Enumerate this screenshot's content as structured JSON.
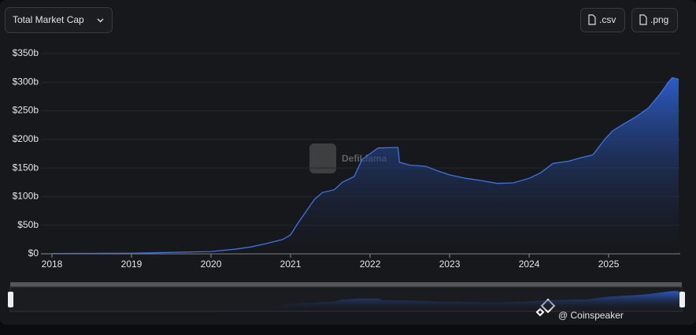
{
  "ui": {
    "dropdown": "Total Market Cap",
    "buttons": [
      ".csv",
      ".png"
    ],
    "watermark": "DefiLlama",
    "credit": "@ Coinspeaker"
  },
  "chart_data": {
    "type": "area",
    "color": "#3f73e0",
    "grid": true,
    "x": [
      2018.0,
      2019.0,
      2020.0,
      2020.3,
      2020.5,
      2020.7,
      2020.9,
      2021.0,
      2021.1,
      2021.2,
      2021.3,
      2021.4,
      2021.55,
      2021.65,
      2021.8,
      2021.9,
      2022.0,
      2022.1,
      2022.35,
      2022.37,
      2022.5,
      2022.7,
      2022.85,
      2023.0,
      2023.2,
      2023.4,
      2023.6,
      2023.8,
      2024.0,
      2024.15,
      2024.3,
      2024.5,
      2024.65,
      2024.8,
      2024.95,
      2025.05,
      2025.2,
      2025.35,
      2025.5,
      2025.65,
      2025.75,
      2025.8,
      2025.88
    ],
    "values": [
      0.5,
      1,
      4,
      8,
      12,
      18,
      25,
      33,
      55,
      75,
      95,
      107,
      112,
      125,
      135,
      165,
      175,
      185,
      186,
      160,
      155,
      153,
      145,
      138,
      132,
      128,
      123,
      124,
      132,
      142,
      158,
      162,
      168,
      173,
      200,
      215,
      228,
      240,
      255,
      280,
      300,
      308,
      305
    ],
    "xlim": [
      2018,
      2025.9
    ],
    "xticks": [
      2018,
      2019,
      2020,
      2021,
      2022,
      2023,
      2024,
      2025
    ],
    "ylim": [
      0,
      350
    ],
    "yticks": [
      {
        "value": 0,
        "label": "$0"
      },
      {
        "value": 50,
        "label": "$50b"
      },
      {
        "value": 100,
        "label": "$100b"
      },
      {
        "value": 150,
        "label": "$150b"
      },
      {
        "value": 200,
        "label": "$200b"
      },
      {
        "value": 250,
        "label": "$250b"
      },
      {
        "value": 300,
        "label": "$300b"
      },
      {
        "value": 350,
        "label": "$350b"
      }
    ]
  }
}
